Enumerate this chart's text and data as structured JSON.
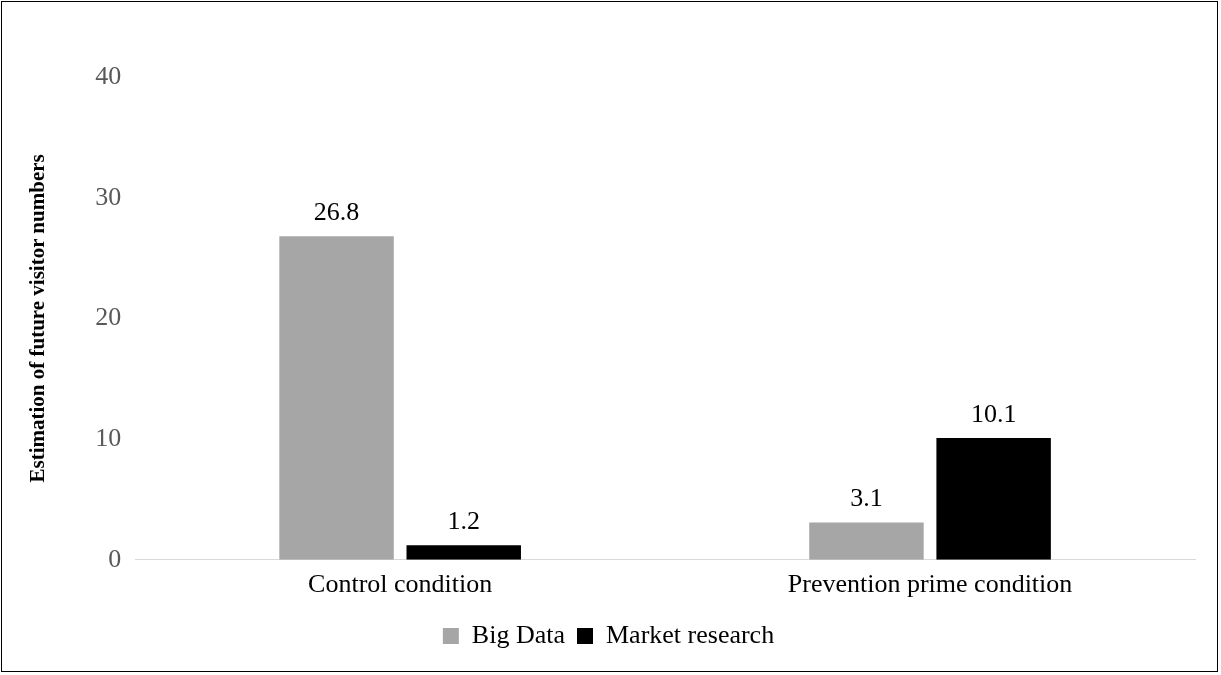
{
  "chart_data": {
    "type": "bar",
    "ylabel": "Estimation of future visitor numbers",
    "categories": [
      "Control condition",
      "Prevention prime condition"
    ],
    "series": [
      {
        "name": "Big Data",
        "color": "#a6a6a6",
        "values": [
          26.8,
          3.1
        ]
      },
      {
        "name": "Market research",
        "color": "#000000",
        "values": [
          1.2,
          10.1
        ]
      }
    ],
    "ylim": [
      0,
      40
    ],
    "yticks": [
      0,
      10,
      20,
      30,
      40
    ],
    "grid": false,
    "legend": "bottom",
    "data_labels": true
  }
}
